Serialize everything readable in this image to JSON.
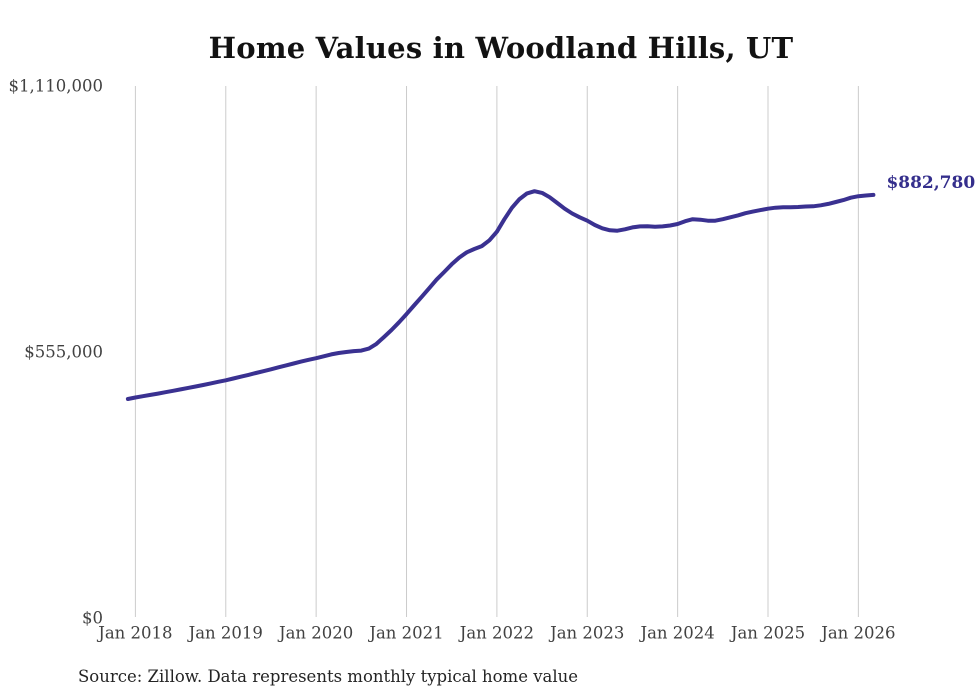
{
  "header": {
    "title": "Home Values in Woodland Hills, UT"
  },
  "footer": {
    "source": "Source: Zillow. Data represents monthly typical home value"
  },
  "colors": {
    "line": "#3a3191",
    "grid": "#cccccc",
    "tick_text": "#414141",
    "end_label_text": "#342e8c"
  },
  "chart_data": {
    "type": "line",
    "title": "Home Values in Woodland Hills, UT",
    "series_name": "Monthly typical home value",
    "ylabel": "",
    "xlabel": "",
    "ylim": [
      0,
      1110000
    ],
    "grid": "vertical-only",
    "legend": "none",
    "y_ticks": [
      {
        "value": 0,
        "label": "$0"
      },
      {
        "value": 555000,
        "label": "$555,000"
      },
      {
        "value": 1110000,
        "label": "$1,110,000"
      }
    ],
    "x_tick_labels": [
      "Jan 2018",
      "Jan 2019",
      "Jan 2020",
      "Jan 2021",
      "Jan 2022",
      "Jan 2023",
      "Jan 2024",
      "Jan 2025",
      "Jan 2026"
    ],
    "start_month": "2017-12",
    "end_month": "2026-03",
    "end_label": "$882,780",
    "end_value": 882780,
    "values": [
      457000,
      460000,
      462800,
      465500,
      468300,
      471200,
      474000,
      477000,
      480000,
      483000,
      486200,
      489500,
      492800,
      496000,
      499800,
      503500,
      507300,
      511200,
      515000,
      519000,
      523000,
      527000,
      531000,
      535000,
      538700,
      542000,
      546000,
      550000,
      553000,
      555000,
      556800,
      558000,
      562000,
      572000,
      586000,
      601000,
      617000,
      634000,
      652000,
      670000,
      688000,
      706000,
      722000,
      738000,
      752000,
      763000,
      770000,
      776000,
      788000,
      806000,
      832000,
      856000,
      874000,
      886000,
      890500,
      887000,
      878000,
      866000,
      854000,
      844000,
      836000,
      829000,
      820000,
      813000,
      809000,
      808000,
      811000,
      815000,
      817000,
      817500,
      816500,
      817000,
      819000,
      822000,
      828000,
      832000,
      831000,
      829000,
      829000,
      832000,
      836000,
      840000,
      844500,
      848000,
      851000,
      854000,
      856000,
      857000,
      857000,
      857500,
      858500,
      859000,
      861000,
      864000,
      868000,
      872000,
      877000,
      880000,
      881500,
      882780
    ]
  }
}
